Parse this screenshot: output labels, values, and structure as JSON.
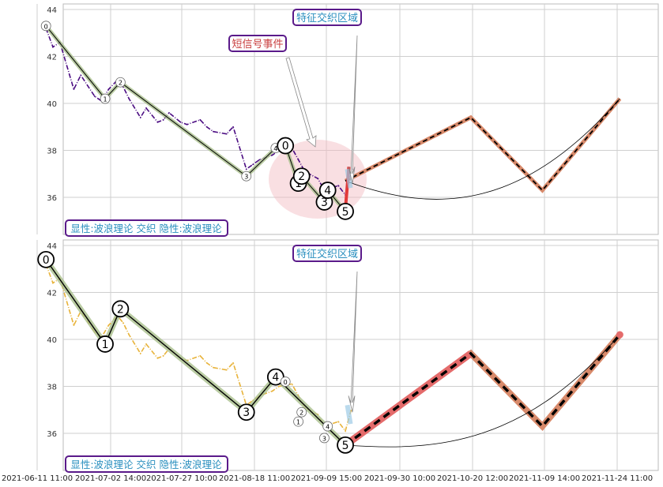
{
  "colors": {
    "grid": "#cfcfcf",
    "price_top": "#4b0c82",
    "price_bottom": "#e8b33a",
    "wave_main": "#000000",
    "wave_shadow": "#a9bf8c",
    "forecast_fill": "#d88a6b",
    "forecast_red": "#e46b6b",
    "label_text": "#2a8fbf",
    "box_border": "#5a1a8a",
    "event_text": "#c94040",
    "ellipse": "#f2b8bf"
  },
  "chart_data": [
    {
      "type": "line",
      "panel": "top",
      "ylim": [
        34.5,
        44.2
      ],
      "yticks": [
        36,
        38,
        40,
        42,
        44
      ],
      "series": [
        {
          "role": "price",
          "x": [
            "2021-06-14",
            "2021-06-16",
            "2021-06-18",
            "2021-06-22",
            "2021-06-24",
            "2021-06-28",
            "2021-06-30",
            "2021-07-02",
            "2021-07-05",
            "2021-07-07",
            "2021-07-09",
            "2021-07-13",
            "2021-07-15",
            "2021-07-19",
            "2021-07-21",
            "2021-07-23",
            "2021-07-27",
            "2021-07-29",
            "2021-08-02",
            "2021-08-04",
            "2021-08-06",
            "2021-08-10",
            "2021-08-12",
            "2021-08-16",
            "2021-08-18",
            "2021-08-20",
            "2021-08-24",
            "2021-08-26",
            "2021-08-30",
            "2021-09-01",
            "2021-09-03",
            "2021-09-07",
            "2021-09-09",
            "2021-09-13",
            "2021-09-15",
            "2021-09-17"
          ],
          "y": [
            43.2,
            42.4,
            42.6,
            40.6,
            41.2,
            40.3,
            40.1,
            40.6,
            41.0,
            40.7,
            40.2,
            39.4,
            39.8,
            39.2,
            39.3,
            39.6,
            39.2,
            39.1,
            39.3,
            39.0,
            38.8,
            38.7,
            39.0,
            37.2,
            37.4,
            37.6,
            37.8,
            38.0,
            38.1,
            37.6,
            37.1,
            36.8,
            36.3,
            36.5,
            36.1,
            37.2
          ]
        }
      ],
      "waves": [
        {
          "label": "0",
          "x": "2021-06-14",
          "y": 43.3
        },
        {
          "label": "1",
          "x": "2021-07-01",
          "y": 40.2
        },
        {
          "label": "2",
          "x": "2021-07-06",
          "y": 40.9
        },
        {
          "label": "3",
          "x": "2021-08-16",
          "y": 36.9
        },
        {
          "label": "4",
          "x": "2021-08-25",
          "y": 38.1
        },
        {
          "label": "0",
          "x": "2021-08-28",
          "y": 38.2
        },
        {
          "label": "1",
          "x": "2021-09-01",
          "y": 36.6
        },
        {
          "label": "2",
          "x": "2021-09-02",
          "y": 36.9
        },
        {
          "label": "3",
          "x": "2021-09-09",
          "y": 35.8
        },
        {
          "label": "4",
          "x": "2021-09-10",
          "y": 36.3
        },
        {
          "label": "5",
          "x": "2021-09-15",
          "y": 35.4
        }
      ],
      "forecast": [
        {
          "x": "2021-09-15",
          "y": 36.7
        },
        {
          "x": "2021-10-20",
          "y": 39.4
        },
        {
          "x": "2021-11-09",
          "y": 36.3
        },
        {
          "x": "2021-11-25",
          "y": 40.2
        }
      ],
      "annotations": [
        "特征交织区域",
        "短信号事件",
        "显性:波浪理论 交织 隐性:波浪理论"
      ]
    },
    {
      "type": "line",
      "panel": "bottom",
      "ylim": [
        34.5,
        44.2
      ],
      "yticks": [
        36,
        38,
        40,
        42,
        44
      ],
      "series": [
        {
          "role": "price",
          "x": [
            "2021-06-14",
            "2021-06-16",
            "2021-06-18",
            "2021-06-22",
            "2021-06-24",
            "2021-06-28",
            "2021-06-30",
            "2021-07-02",
            "2021-07-05",
            "2021-07-07",
            "2021-07-09",
            "2021-07-13",
            "2021-07-15",
            "2021-07-19",
            "2021-07-21",
            "2021-07-23",
            "2021-07-27",
            "2021-07-29",
            "2021-08-02",
            "2021-08-04",
            "2021-08-06",
            "2021-08-10",
            "2021-08-12",
            "2021-08-16",
            "2021-08-18",
            "2021-08-20",
            "2021-08-24",
            "2021-08-26",
            "2021-08-30",
            "2021-09-01",
            "2021-09-03",
            "2021-09-07",
            "2021-09-09",
            "2021-09-13",
            "2021-09-15",
            "2021-09-17"
          ],
          "y": [
            43.2,
            42.4,
            42.6,
            40.6,
            41.2,
            40.3,
            40.1,
            40.6,
            41.0,
            40.7,
            40.2,
            39.4,
            39.8,
            39.2,
            39.3,
            39.6,
            39.2,
            39.1,
            39.3,
            39.0,
            38.8,
            38.7,
            39.0,
            37.2,
            37.4,
            37.6,
            37.8,
            38.0,
            38.1,
            37.6,
            37.1,
            36.8,
            36.3,
            36.5,
            36.1,
            37.2
          ]
        }
      ],
      "waves": [
        {
          "label": "0",
          "x": "2021-06-14",
          "y": 43.4
        },
        {
          "label": "1",
          "x": "2021-07-01",
          "y": 39.8
        },
        {
          "label": "2",
          "x": "2021-07-06",
          "y": 41.3
        },
        {
          "label": "3",
          "x": "2021-08-16",
          "y": 36.9
        },
        {
          "label": "4",
          "x": "2021-08-25",
          "y": 38.4
        },
        {
          "label": "5",
          "x": "2021-09-15",
          "y": 35.5
        }
      ],
      "forecast": [
        {
          "x": "2021-09-15",
          "y": 35.5
        },
        {
          "x": "2021-10-20",
          "y": 39.4
        },
        {
          "x": "2021-11-09",
          "y": 36.3
        },
        {
          "x": "2021-11-25",
          "y": 40.2
        }
      ],
      "annotations": [
        "特征交织区域",
        "显性:波浪理论 交织 隐性:波浪理论"
      ]
    }
  ],
  "x_axis": {
    "tick_labels": [
      "2021-06-11 11:00",
      "2021-07-02 14:00",
      "2021-07-27 10:00",
      "2021-08-18 11:00",
      "2021-09-09 15:00",
      "2021-09-30 10:00",
      "2021-10-20 12:00",
      "2021-11-09 14:00",
      "2021-11-24 11:00"
    ]
  },
  "labels": {
    "region_top": "特征交织区域",
    "region_bottom": "特征交织区域",
    "event": "短信号事件",
    "legend_top": "显性:波浪理论 交织 隐性:波浪理论",
    "legend_bottom": "显性:波浪理论 交织 隐性:波浪理论"
  }
}
